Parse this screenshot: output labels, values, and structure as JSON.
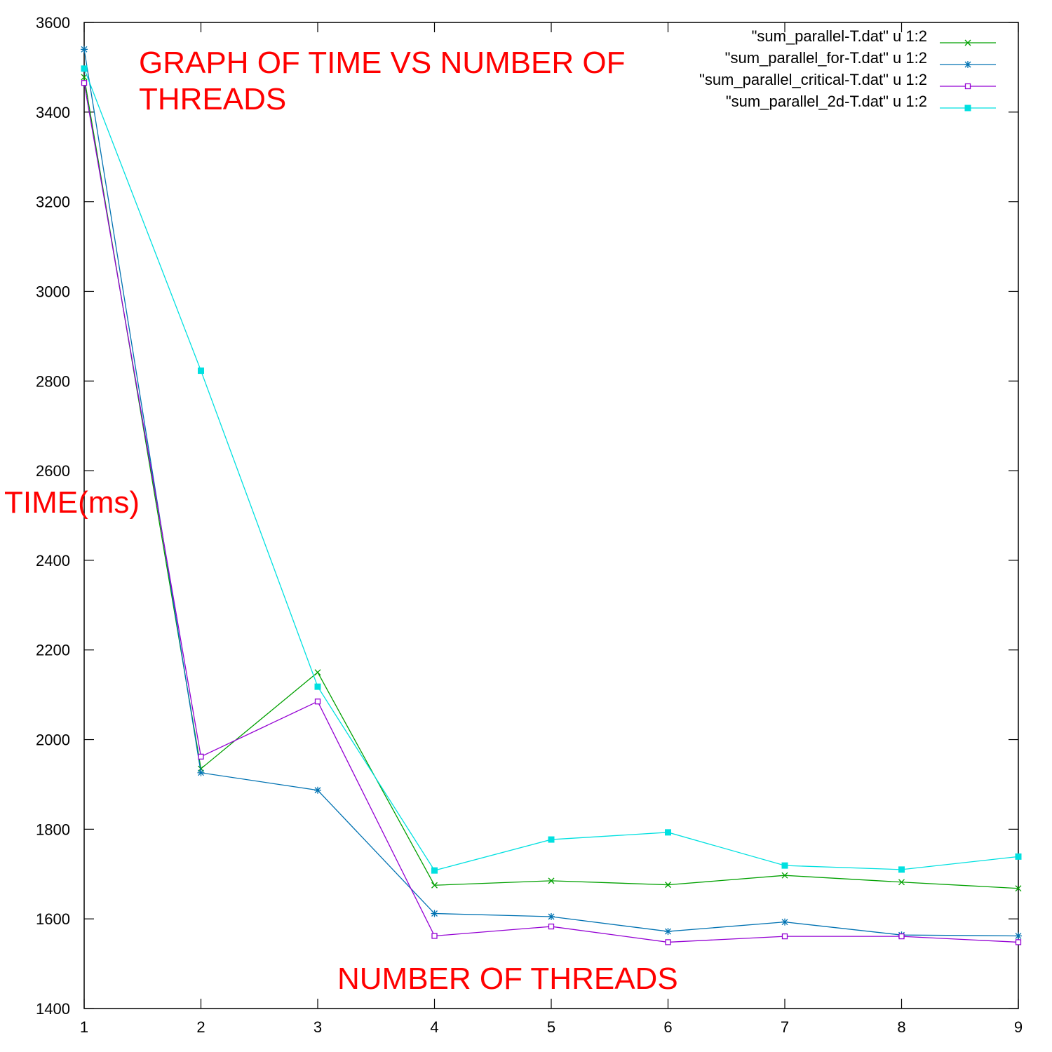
{
  "chart_data": {
    "type": "line",
    "title": "GRAPH OF TIME VS NUMBER OF THREADS",
    "title_lines": [
      "GRAPH OF TIME VS NUMBER OF",
      "THREADS"
    ],
    "xlabel": "NUMBER OF THREADS",
    "ylabel": "TIME(ms)",
    "xlim": [
      1,
      9
    ],
    "ylim": [
      1400,
      3600
    ],
    "xticks": [
      1,
      2,
      3,
      4,
      5,
      6,
      7,
      8,
      9
    ],
    "yticks": [
      1400,
      1600,
      1800,
      2000,
      2200,
      2400,
      2600,
      2800,
      3000,
      3200,
      3400,
      3600
    ],
    "legend_position": "top-right",
    "grid": false,
    "label_color": "#ff0000",
    "x": [
      1,
      2,
      3,
      4,
      5,
      6,
      7,
      8,
      9
    ],
    "series": [
      {
        "name": "\"sum_parallel-T.dat\" u 1:2",
        "color": "#00a000",
        "marker": "x",
        "values": [
          3478,
          1935,
          2150,
          1675,
          1685,
          1676,
          1697,
          1682,
          1668
        ]
      },
      {
        "name": "\"sum_parallel_for-T.dat\" u 1:2",
        "color": "#0072b2",
        "marker": "star",
        "values": [
          3540,
          1926,
          1887,
          1612,
          1605,
          1572,
          1593,
          1564,
          1562
        ]
      },
      {
        "name": "\"sum_parallel_critical-T.dat\" u 1:2",
        "color": "#9400d3",
        "marker": "open-square",
        "values": [
          3465,
          1962,
          2085,
          1562,
          1583,
          1548,
          1561,
          1561,
          1548
        ]
      },
      {
        "name": "\"sum_parallel_2d-T.dat\" u 1:2",
        "color": "#00e0e0",
        "marker": "filled-square",
        "values": [
          3497,
          2823,
          2118,
          1708,
          1777,
          1793,
          1719,
          1710,
          1739
        ]
      }
    ]
  }
}
